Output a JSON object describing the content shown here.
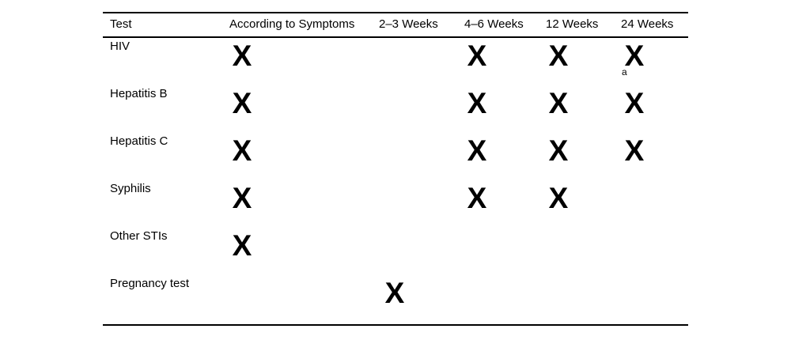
{
  "table": {
    "headers": [
      "Test",
      "According to Symptoms",
      "2–3 Weeks",
      "4–6 Weeks",
      "12 Weeks",
      "24 Weeks"
    ],
    "column_keys": [
      "according_to_symptoms",
      "weeks_2_3",
      "weeks_4_6",
      "weeks_12",
      "weeks_24"
    ],
    "rows": [
      {
        "label": "HIV",
        "marks": [
          true,
          false,
          true,
          true,
          true
        ],
        "footnote": "a"
      },
      {
        "label": "Hepatitis B",
        "marks": [
          true,
          false,
          true,
          true,
          true
        ]
      },
      {
        "label": "Hepatitis C",
        "marks": [
          true,
          false,
          true,
          true,
          true
        ]
      },
      {
        "label": "Syphilis",
        "marks": [
          true,
          false,
          true,
          true,
          false
        ]
      },
      {
        "label": "Other STIs",
        "marks": [
          true,
          false,
          false,
          false,
          false
        ]
      },
      {
        "label": "Pregnancy test",
        "marks": [
          false,
          true,
          false,
          false,
          false
        ]
      }
    ]
  },
  "glyphs": {
    "x_mark": "X"
  },
  "colors": {
    "text": "#000000",
    "rule": "#000000",
    "background": "#ffffff"
  }
}
